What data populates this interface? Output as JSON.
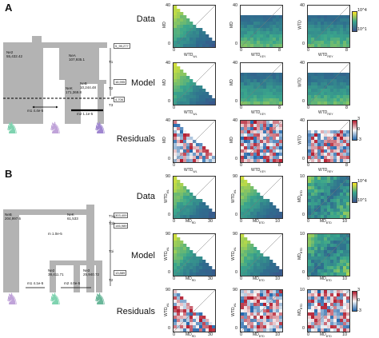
{
  "panel_a": {
    "letter": "A",
    "row_labels": [
      "Data",
      "Model",
      "Residuals"
    ],
    "tree": {
      "time_boxes": [
        "5_99,277",
        "16,995",
        "4,706"
      ],
      "time_labels": [
        "T1",
        "T2",
        "T3"
      ],
      "nodes": [
        {
          "name": "Ne2",
          "size": "55,432.42"
        },
        {
          "name": "NeA",
          "size": "107,935.1"
        },
        {
          "name": "NeK",
          "size": "171,369.8"
        },
        {
          "name": "NeB",
          "size": "10,244.48"
        }
      ],
      "migration": [
        {
          "label": "m1",
          "rate": "4.4e-5"
        },
        {
          "label": "m2",
          "rate": "1.1e-5"
        }
      ]
    },
    "plots": {
      "ylabel": "MD",
      "xlabels": [
        "WTD",
        "WTD",
        "WTD"
      ],
      "xsubs": [
        "WL",
        "KEY",
        "REY"
      ],
      "col3_ylabel": "WTD",
      "col3_ysub": "WL",
      "ytick_top": "40",
      "ytick_bottom": "0",
      "xtick_left": "0",
      "xtick_right_col1": "",
      "xtick_right": "8",
      "col3_xticks": [
        "0",
        "8"
      ],
      "cbar_data": [
        "10",
        "4",
        "10",
        "1"
      ],
      "cbar_resid": [
        "3",
        "0",
        "-3"
      ]
    }
  },
  "panel_b": {
    "letter": "B",
    "row_labels": [
      "Data",
      "Model",
      "Residuals"
    ],
    "tree": {
      "time_boxes": [
        "303,409",
        "146,989",
        "13,889"
      ],
      "time_labels": [
        "T1a",
        "T1b",
        "T1i",
        "T2"
      ],
      "nodes": [
        {
          "name": "NeB",
          "size": "204,997.6"
        },
        {
          "name": "NeK",
          "size": "61,533"
        },
        {
          "name": "Ne2",
          "size": "38,411.71"
        },
        {
          "name": "Ne3",
          "size": "25,940.72"
        }
      ],
      "migration": [
        {
          "label": "m",
          "rate": "1.0e-5"
        },
        {
          "label": "m1",
          "rate": "4.1e-5"
        },
        {
          "label": "m2",
          "rate": "4.0e-5"
        }
      ]
    },
    "plots": {
      "ylabels": [
        "WTD",
        "WTD",
        "MD"
      ],
      "ysubs": [
        "WL",
        "WL",
        "BTD"
      ],
      "xlabels": [
        "MD",
        "MD",
        "MD"
      ],
      "xsubs": [
        "RD",
        "BTD",
        "BTD"
      ],
      "ytick_top": "90",
      "ytick_top_col3": "10",
      "ytick_bottom": "0",
      "xticks_col1": [
        "0",
        "30"
      ],
      "xticks_col23": [
        "0",
        "10"
      ],
      "cbar_data": [
        "10",
        "4",
        "10",
        "1"
      ],
      "cbar_resid": [
        "3",
        "0",
        "-3"
      ]
    }
  },
  "colors": {
    "tree_gray": "#b3b3b3",
    "heat_dark": "#2f6e8e",
    "heat_mid": "#3aa58c",
    "heat_light": "#b6d84a",
    "resid_red": "#b2182b",
    "resid_blue": "#2166ac"
  }
}
